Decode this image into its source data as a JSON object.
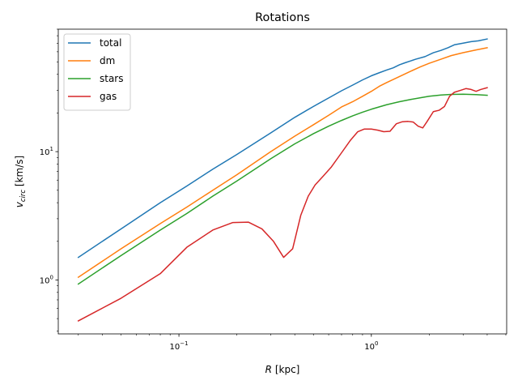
{
  "chart_data": {
    "type": "line",
    "title": "Rotations",
    "xlabel_parts": [
      {
        "text": "R",
        "italic": true
      },
      {
        "text": " [kpc]",
        "italic": false
      }
    ],
    "ylabel_parts": [
      {
        "text": "v",
        "italic": true,
        "sub": false
      },
      {
        "text": "circ",
        "italic": true,
        "sub": true
      },
      {
        "text": " [km/s]",
        "italic": false,
        "sub": false
      }
    ],
    "xscale": "log",
    "yscale": "log",
    "xlim": [
      0.0236,
      5.05
    ],
    "ylim": [
      0.38,
      90
    ],
    "x_major_ticks": [
      {
        "value": 0.1,
        "base": "10",
        "exp": "−1"
      },
      {
        "value": 1,
        "base": "10",
        "exp": "0"
      }
    ],
    "y_major_ticks": [
      {
        "value": 1,
        "base": "10",
        "exp": "0"
      },
      {
        "value": 10,
        "base": "10",
        "exp": "1"
      }
    ],
    "grid": false,
    "legend_position": "top-left",
    "series": [
      {
        "name": "total",
        "color": "#1f77b4",
        "x": [
          0.03,
          0.05,
          0.08,
          0.11,
          0.15,
          0.2,
          0.3,
          0.4,
          0.5,
          0.6,
          0.7,
          0.8,
          0.9,
          1.0,
          1.1,
          1.2,
          1.3,
          1.4,
          1.5,
          1.7,
          1.9,
          2.1,
          2.3,
          2.5,
          2.7,
          3.0,
          3.3,
          3.6,
          4.0
        ],
        "y": [
          1.5,
          2.5,
          4.0,
          5.4,
          7.3,
          9.5,
          14.0,
          18.5,
          22.5,
          26.2,
          29.8,
          33.0,
          36.2,
          39.0,
          41.2,
          43.2,
          45.0,
          47.5,
          49.3,
          52.5,
          55.0,
          59.0,
          61.5,
          64.5,
          68.0,
          70.0,
          72.0,
          73.0,
          75.5
        ]
      },
      {
        "name": "dm",
        "color": "#ff7f0e",
        "x": [
          0.03,
          0.05,
          0.08,
          0.11,
          0.15,
          0.2,
          0.3,
          0.4,
          0.5,
          0.6,
          0.7,
          0.8,
          0.9,
          1.0,
          1.1,
          1.2,
          1.4,
          1.6,
          1.8,
          2.0,
          2.3,
          2.6,
          3.0,
          3.5,
          4.0
        ],
        "y": [
          1.05,
          1.75,
          2.75,
          3.7,
          5.0,
          6.6,
          10.0,
          13.2,
          16.2,
          19.2,
          22.3,
          24.5,
          27.0,
          29.5,
          32.3,
          34.5,
          38.5,
          42.3,
          45.8,
          48.8,
          52.5,
          56.0,
          59.0,
          62.0,
          64.5
        ]
      },
      {
        "name": "stars",
        "color": "#2ca02c",
        "x": [
          0.03,
          0.05,
          0.08,
          0.11,
          0.15,
          0.2,
          0.3,
          0.4,
          0.5,
          0.6,
          0.7,
          0.8,
          0.9,
          1.0,
          1.2,
          1.4,
          1.6,
          1.8,
          2.0,
          2.3,
          2.6,
          3.0,
          3.5,
          4.0
        ],
        "y": [
          0.93,
          1.55,
          2.45,
          3.3,
          4.5,
          5.9,
          8.8,
          11.5,
          13.8,
          15.8,
          17.5,
          19.0,
          20.3,
          21.4,
          23.2,
          24.5,
          25.5,
          26.3,
          27.0,
          27.6,
          27.9,
          28.0,
          27.8,
          27.5
        ]
      },
      {
        "name": "gas",
        "color": "#d62728",
        "x": [
          0.03,
          0.05,
          0.08,
          0.11,
          0.15,
          0.19,
          0.23,
          0.27,
          0.31,
          0.35,
          0.39,
          0.43,
          0.47,
          0.51,
          0.56,
          0.62,
          0.7,
          0.78,
          0.85,
          0.92,
          1.0,
          1.08,
          1.16,
          1.25,
          1.35,
          1.45,
          1.55,
          1.65,
          1.75,
          1.85,
          1.95,
          2.1,
          2.25,
          2.4,
          2.55,
          2.7,
          2.9,
          3.1,
          3.3,
          3.5,
          3.7,
          4.0
        ],
        "y": [
          0.48,
          0.72,
          1.12,
          1.8,
          2.45,
          2.8,
          2.82,
          2.5,
          2.0,
          1.5,
          1.75,
          3.2,
          4.5,
          5.5,
          6.4,
          7.6,
          9.8,
          12.3,
          14.3,
          15.0,
          15.0,
          14.7,
          14.3,
          14.4,
          16.5,
          17.1,
          17.2,
          17.0,
          15.8,
          15.3,
          17.2,
          20.5,
          21.0,
          22.5,
          27.0,
          29.0,
          30.0,
          31.0,
          30.5,
          29.5,
          30.5,
          31.5
        ]
      }
    ]
  }
}
